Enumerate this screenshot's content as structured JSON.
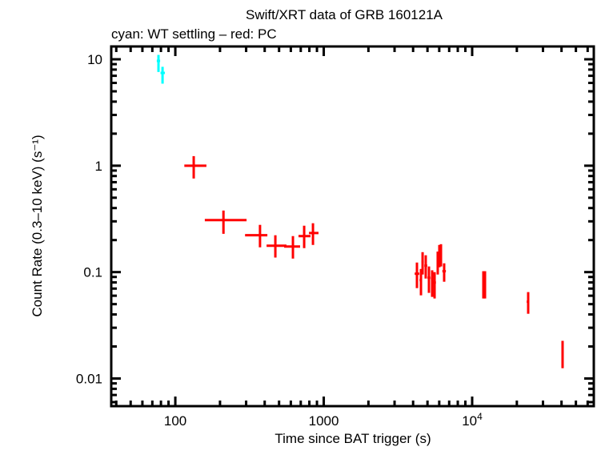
{
  "chart_data": {
    "type": "scatter",
    "title": "Swift/XRT data of GRB 160121A",
    "subtitle": "cyan: WT settling – red: PC",
    "xlabel": "Time since BAT trigger (s)",
    "ylabel": "Count Rate (0.3–10 keV) (s⁻¹)",
    "xscale": "log",
    "yscale": "log",
    "xlim": [
      37,
      66000
    ],
    "ylim": [
      0.0055,
      13.2
    ],
    "grid": false,
    "x_tick_labels": [
      {
        "value": 100,
        "base": "100",
        "exp": ""
      },
      {
        "value": 1000,
        "base": "1000",
        "exp": ""
      },
      {
        "value": 10000,
        "base": "10",
        "exp": "4"
      }
    ],
    "y_tick_labels": [
      {
        "value": 10,
        "label": "10"
      },
      {
        "value": 1,
        "label": "1"
      },
      {
        "value": 0.1,
        "label": "0.1"
      },
      {
        "value": 0.01,
        "label": "0.01"
      }
    ],
    "series": [
      {
        "mode": "WT settling",
        "color": "#00ffff",
        "points": [
          {
            "x": 77,
            "xlo": 75,
            "xhi": 79,
            "y": 9.66,
            "ylo": 7.6,
            "yhi": 11.0
          },
          {
            "x": 82,
            "xlo": 79.5,
            "xhi": 85,
            "y": 7.45,
            "ylo": 5.9,
            "yhi": 8.5
          }
        ]
      },
      {
        "mode": "PC",
        "color": "#ff0000",
        "points": [
          {
            "x": 133,
            "xlo": 115,
            "xhi": 162,
            "y": 1.0,
            "ylo": 0.758,
            "yhi": 1.23
          },
          {
            "x": 211,
            "xlo": 158,
            "xhi": 302,
            "y": 0.308,
            "ylo": 0.229,
            "yhi": 0.379
          },
          {
            "x": 372,
            "xlo": 295,
            "xhi": 417,
            "y": 0.222,
            "ylo": 0.171,
            "yhi": 0.278
          },
          {
            "x": 472,
            "xlo": 412,
            "xhi": 561,
            "y": 0.177,
            "ylo": 0.137,
            "yhi": 0.222
          },
          {
            "x": 620,
            "xlo": 541,
            "xhi": 693,
            "y": 0.174,
            "ylo": 0.134,
            "yhi": 0.218
          },
          {
            "x": 738,
            "xlo": 676,
            "xhi": 814,
            "y": 0.218,
            "ylo": 0.168,
            "yhi": 0.273
          },
          {
            "x": 846,
            "xlo": 795,
            "xhi": 922,
            "y": 0.233,
            "ylo": 0.18,
            "yhi": 0.288
          },
          {
            "x": 4246,
            "xlo": 4100,
            "xhi": 4400,
            "y": 0.0966,
            "ylo": 0.0707,
            "yhi": 0.123
          },
          {
            "x": 4519,
            "xlo": 4420,
            "xhi": 4600,
            "y": 0.0841,
            "ylo": 0.0605,
            "yhi": 0.107
          },
          {
            "x": 4634,
            "xlo": 4560,
            "xhi": 4720,
            "y": 0.125,
            "ylo": 0.0949,
            "yhi": 0.154
          },
          {
            "x": 4865,
            "xlo": 4760,
            "xhi": 4980,
            "y": 0.115,
            "ylo": 0.087,
            "yhi": 0.144
          },
          {
            "x": 5114,
            "xlo": 5000,
            "xhi": 5230,
            "y": 0.0886,
            "ylo": 0.0638,
            "yhi": 0.113
          },
          {
            "x": 5374,
            "xlo": 5270,
            "xhi": 5470,
            "y": 0.087,
            "ylo": 0.0585,
            "yhi": 0.104
          },
          {
            "x": 5581,
            "xlo": 5480,
            "xhi": 5700,
            "y": 0.0798,
            "ylo": 0.0565,
            "yhi": 0.1
          },
          {
            "x": 5861,
            "xlo": 5760,
            "xhi": 5950,
            "y": 0.127,
            "ylo": 0.0949,
            "yhi": 0.156
          },
          {
            "x": 6010,
            "xlo": 5950,
            "xhi": 6080,
            "y": 0.137,
            "ylo": 0.111,
            "yhi": 0.18
          },
          {
            "x": 6163,
            "xlo": 6090,
            "xhi": 6240,
            "y": 0.149,
            "ylo": 0.113,
            "yhi": 0.183
          },
          {
            "x": 6475,
            "xlo": 6300,
            "xhi": 6650,
            "y": 0.102,
            "ylo": 0.0812,
            "yhi": 0.121
          },
          {
            "x": 11900,
            "xlo": 11750,
            "xhi": 12050,
            "y": 0.0798,
            "ylo": 0.0565,
            "yhi": 0.102
          },
          {
            "x": 12200,
            "xlo": 12050,
            "xhi": 12400,
            "y": 0.0798,
            "ylo": 0.0565,
            "yhi": 0.102
          },
          {
            "x": 23850,
            "xlo": 23300,
            "xhi": 24200,
            "y": 0.0527,
            "ylo": 0.0406,
            "yhi": 0.0649
          },
          {
            "x": 40660,
            "xlo": 40000,
            "xhi": 41300,
            "y": 0.0174,
            "ylo": 0.0125,
            "yhi": 0.0226
          }
        ]
      }
    ]
  }
}
